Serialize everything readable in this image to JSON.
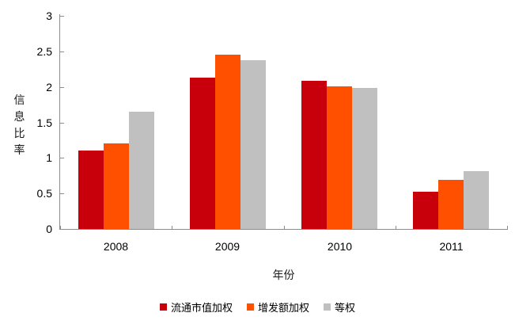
{
  "chart_data": {
    "type": "bar",
    "categories": [
      "2008",
      "2009",
      "2010",
      "2011"
    ],
    "series": [
      {
        "name": "流通市值加权",
        "color": "#c8000c",
        "values": [
          1.1,
          2.13,
          2.09,
          0.52
        ]
      },
      {
        "name": "增发额加权",
        "color": "#ff5000",
        "values": [
          1.21,
          2.45,
          2.01,
          0.69
        ]
      },
      {
        "name": "等权",
        "color": "#c0c0c0",
        "values": [
          1.65,
          2.37,
          1.99,
          0.81
        ]
      }
    ],
    "title": "",
    "xlabel": "年份",
    "ylabel": "信息比率",
    "ylim": [
      0,
      3
    ],
    "yticks": [
      0,
      0.5,
      1,
      1.5,
      2,
      2.5,
      3
    ],
    "grid": false,
    "legend_position": "bottom",
    "axis_color": "#8c8c8c",
    "background_color": "#ffffff"
  }
}
